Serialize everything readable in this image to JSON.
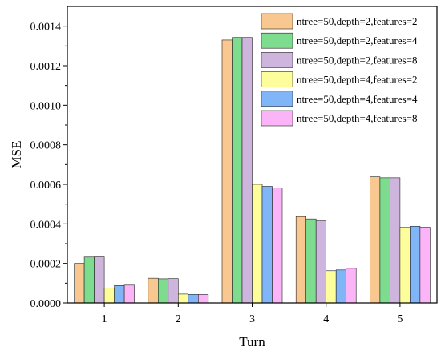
{
  "chart_data": {
    "type": "bar",
    "title": "",
    "xlabel": "Turn",
    "ylabel": "MSE",
    "categories": [
      "1",
      "2",
      "3",
      "4",
      "5"
    ],
    "ylim": [
      0,
      0.0015
    ],
    "yticks": [
      "0.0000",
      "0.0002",
      "0.0004",
      "0.0006",
      "0.0008",
      "0.0010",
      "0.0012",
      "0.0014"
    ],
    "ytick_values": [
      0,
      0.0002,
      0.0004,
      0.0006,
      0.0008,
      0.001,
      0.0012,
      0.0014
    ],
    "grid": false,
    "legend_position": "top-right",
    "series": [
      {
        "name": "ntree=50,depth=2,features=2",
        "color": "#F9C890",
        "values": [
          0.0002,
          0.000125,
          0.00133,
          0.000437,
          0.000638
        ]
      },
      {
        "name": "ntree=50,depth=2,features=4",
        "color": "#7DDC8E",
        "values": [
          0.000232,
          0.000122,
          0.001343,
          0.000425,
          0.000633
        ]
      },
      {
        "name": "ntree=50,depth=2,features=8",
        "color": "#CDB5DD",
        "values": [
          0.000233,
          0.000123,
          0.001343,
          0.000415,
          0.000633
        ]
      },
      {
        "name": "ntree=50,depth=4,features=2",
        "color": "#FDFD9C",
        "values": [
          7.5e-05,
          4.5e-05,
          0.0006,
          0.000163,
          0.000382
        ]
      },
      {
        "name": "ntree=50,depth=4,features=4",
        "color": "#80B6F7",
        "values": [
          8.8e-05,
          4.3e-05,
          0.00059,
          0.000167,
          0.000388
        ]
      },
      {
        "name": "ntree=50,depth=4,features=8",
        "color": "#FAB4F7",
        "values": [
          9e-05,
          4.3e-05,
          0.000582,
          0.000175,
          0.000383
        ]
      }
    ]
  }
}
